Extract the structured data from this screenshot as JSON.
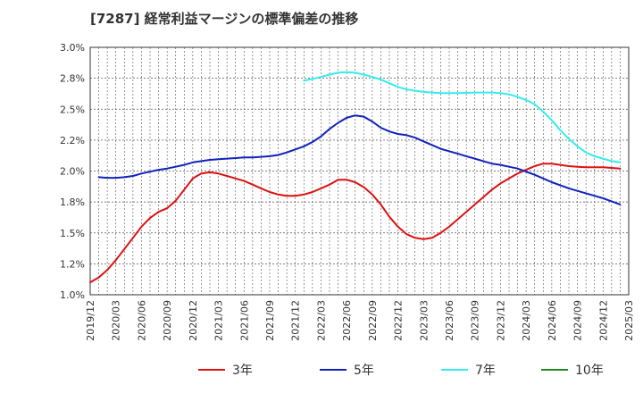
{
  "chart_data": {
    "type": "line",
    "title": "[7287]  経常利益マージンの標準偏差の推移",
    "x": [
      "2019/12",
      "2020/03",
      "2020/06",
      "2020/09",
      "2020/12",
      "2021/03",
      "2021/06",
      "2021/09",
      "2021/12",
      "2022/03",
      "2022/06",
      "2022/09",
      "2022/12",
      "2023/03",
      "2023/06",
      "2023/09",
      "2023/12",
      "2024/03",
      "2024/06",
      "2024/09",
      "2024/12",
      "2025/03"
    ],
    "x_tick_labels": [
      "2019/12",
      "2020/03",
      "2020/06",
      "2020/09",
      "2020/12",
      "2021/03",
      "2021/06",
      "2021/09",
      "2021/12",
      "2022/03",
      "2022/06",
      "2022/09",
      "2022/12",
      "2023/03",
      "2023/06",
      "2023/09",
      "2023/12",
      "2024/03",
      "2024/06",
      "2024/09",
      "2024/12",
      "2025/03"
    ],
    "y_tick_labels": [
      "1.0%",
      "1.2%",
      "1.5%",
      "1.8%",
      "2.0%",
      "2.2%",
      "2.5%",
      "2.8%",
      "3.0%"
    ],
    "ylim": [
      1.0,
      3.0
    ],
    "grid": true,
    "legend_position": "bottom",
    "colors": {
      "3年": "#dd1111",
      "5年": "#1122bb",
      "7年": "#33eeee",
      "10年": "#228822"
    },
    "series": [
      {
        "name": "3年",
        "points": [
          [
            "2019/12",
            1.1
          ],
          [
            "2020/01",
            1.14
          ],
          [
            "2020/02",
            1.2
          ],
          [
            "2020/03",
            1.28
          ],
          [
            "2020/04",
            1.37
          ],
          [
            "2020/05",
            1.46
          ],
          [
            "2020/06",
            1.55
          ],
          [
            "2020/07",
            1.62
          ],
          [
            "2020/08",
            1.67
          ],
          [
            "2020/09",
            1.7
          ],
          [
            "2020/10",
            1.76
          ],
          [
            "2020/11",
            1.85
          ],
          [
            "2020/12",
            1.94
          ],
          [
            "2021/01",
            1.98
          ],
          [
            "2021/02",
            1.99
          ],
          [
            "2021/03",
            1.98
          ],
          [
            "2021/04",
            1.96
          ],
          [
            "2021/05",
            1.94
          ],
          [
            "2021/06",
            1.92
          ],
          [
            "2021/07",
            1.89
          ],
          [
            "2021/08",
            1.86
          ],
          [
            "2021/09",
            1.83
          ],
          [
            "2021/10",
            1.81
          ],
          [
            "2021/11",
            1.8
          ],
          [
            "2021/12",
            1.8
          ],
          [
            "2022/01",
            1.81
          ],
          [
            "2022/02",
            1.83
          ],
          [
            "2022/03",
            1.86
          ],
          [
            "2022/04",
            1.89
          ],
          [
            "2022/05",
            1.93
          ],
          [
            "2022/06",
            1.93
          ],
          [
            "2022/07",
            1.91
          ],
          [
            "2022/08",
            1.87
          ],
          [
            "2022/09",
            1.81
          ],
          [
            "2022/10",
            1.73
          ],
          [
            "2022/11",
            1.63
          ],
          [
            "2022/12",
            1.55
          ],
          [
            "2023/01",
            1.49
          ],
          [
            "2023/02",
            1.46
          ],
          [
            "2023/03",
            1.45
          ],
          [
            "2023/04",
            1.46
          ],
          [
            "2023/05",
            1.5
          ],
          [
            "2023/06",
            1.55
          ],
          [
            "2023/07",
            1.61
          ],
          [
            "2023/08",
            1.67
          ],
          [
            "2023/09",
            1.73
          ],
          [
            "2023/10",
            1.79
          ],
          [
            "2023/11",
            1.85
          ],
          [
            "2023/12",
            1.9
          ],
          [
            "2024/01",
            1.94
          ],
          [
            "2024/02",
            1.98
          ],
          [
            "2024/03",
            2.01
          ],
          [
            "2024/04",
            2.04
          ],
          [
            "2024/05",
            2.06
          ],
          [
            "2024/06",
            2.06
          ],
          [
            "2024/07",
            2.05
          ],
          [
            "2024/08",
            2.04
          ],
          [
            "2024/09",
            2.035
          ],
          [
            "2024/10",
            2.03
          ],
          [
            "2024/11",
            2.03
          ],
          [
            "2024/12",
            2.03
          ],
          [
            "2025/01",
            2.025
          ],
          [
            "2025/02",
            2.02
          ]
        ]
      },
      {
        "name": "5年",
        "points": [
          [
            "2020/01",
            1.95
          ],
          [
            "2020/02",
            1.945
          ],
          [
            "2020/03",
            1.945
          ],
          [
            "2020/04",
            1.95
          ],
          [
            "2020/05",
            1.96
          ],
          [
            "2020/06",
            1.98
          ],
          [
            "2020/07",
            1.995
          ],
          [
            "2020/08",
            2.01
          ],
          [
            "2020/09",
            2.02
          ],
          [
            "2020/10",
            2.035
          ],
          [
            "2020/11",
            2.05
          ],
          [
            "2020/12",
            2.07
          ],
          [
            "2021/01",
            2.08
          ],
          [
            "2021/02",
            2.09
          ],
          [
            "2021/03",
            2.095
          ],
          [
            "2021/04",
            2.1
          ],
          [
            "2021/05",
            2.105
          ],
          [
            "2021/06",
            2.11
          ],
          [
            "2021/07",
            2.11
          ],
          [
            "2021/08",
            2.115
          ],
          [
            "2021/09",
            2.12
          ],
          [
            "2021/10",
            2.13
          ],
          [
            "2021/11",
            2.15
          ],
          [
            "2021/12",
            2.175
          ],
          [
            "2022/01",
            2.2
          ],
          [
            "2022/02",
            2.235
          ],
          [
            "2022/03",
            2.28
          ],
          [
            "2022/04",
            2.34
          ],
          [
            "2022/05",
            2.39
          ],
          [
            "2022/06",
            2.43
          ],
          [
            "2022/07",
            2.45
          ],
          [
            "2022/08",
            2.44
          ],
          [
            "2022/09",
            2.4
          ],
          [
            "2022/10",
            2.35
          ],
          [
            "2022/11",
            2.32
          ],
          [
            "2022/12",
            2.3
          ],
          [
            "2023/01",
            2.29
          ],
          [
            "2023/02",
            2.27
          ],
          [
            "2023/03",
            2.24
          ],
          [
            "2023/04",
            2.21
          ],
          [
            "2023/05",
            2.18
          ],
          [
            "2023/06",
            2.16
          ],
          [
            "2023/07",
            2.14
          ],
          [
            "2023/08",
            2.12
          ],
          [
            "2023/09",
            2.1
          ],
          [
            "2023/10",
            2.08
          ],
          [
            "2023/11",
            2.06
          ],
          [
            "2023/12",
            2.05
          ],
          [
            "2024/01",
            2.035
          ],
          [
            "2024/02",
            2.02
          ],
          [
            "2024/03",
            1.995
          ],
          [
            "2024/04",
            1.97
          ],
          [
            "2024/05",
            1.94
          ],
          [
            "2024/06",
            1.91
          ],
          [
            "2024/07",
            1.885
          ],
          [
            "2024/08",
            1.86
          ],
          [
            "2024/09",
            1.84
          ],
          [
            "2024/10",
            1.82
          ],
          [
            "2024/11",
            1.8
          ],
          [
            "2024/12",
            1.78
          ],
          [
            "2025/01",
            1.755
          ],
          [
            "2025/02",
            1.73
          ]
        ]
      },
      {
        "name": "7年",
        "points": [
          [
            "2022/01",
            2.73
          ],
          [
            "2022/02",
            2.745
          ],
          [
            "2022/03",
            2.76
          ],
          [
            "2022/04",
            2.78
          ],
          [
            "2022/05",
            2.795
          ],
          [
            "2022/06",
            2.8
          ],
          [
            "2022/07",
            2.795
          ],
          [
            "2022/08",
            2.78
          ],
          [
            "2022/09",
            2.76
          ],
          [
            "2022/10",
            2.74
          ],
          [
            "2022/11",
            2.71
          ],
          [
            "2022/12",
            2.68
          ],
          [
            "2023/01",
            2.66
          ],
          [
            "2023/02",
            2.65
          ],
          [
            "2023/03",
            2.64
          ],
          [
            "2023/04",
            2.635
          ],
          [
            "2023/05",
            2.63
          ],
          [
            "2023/06",
            2.63
          ],
          [
            "2023/07",
            2.63
          ],
          [
            "2023/08",
            2.632
          ],
          [
            "2023/09",
            2.635
          ],
          [
            "2023/10",
            2.635
          ],
          [
            "2023/11",
            2.635
          ],
          [
            "2023/12",
            2.63
          ],
          [
            "2024/01",
            2.62
          ],
          [
            "2024/02",
            2.6
          ],
          [
            "2024/03",
            2.575
          ],
          [
            "2024/04",
            2.54
          ],
          [
            "2024/05",
            2.48
          ],
          [
            "2024/06",
            2.41
          ],
          [
            "2024/07",
            2.33
          ],
          [
            "2024/08",
            2.26
          ],
          [
            "2024/09",
            2.2
          ],
          [
            "2024/10",
            2.15
          ],
          [
            "2024/11",
            2.12
          ],
          [
            "2024/12",
            2.1
          ],
          [
            "2025/01",
            2.08
          ],
          [
            "2025/02",
            2.07
          ]
        ]
      },
      {
        "name": "10年",
        "points": []
      }
    ]
  }
}
